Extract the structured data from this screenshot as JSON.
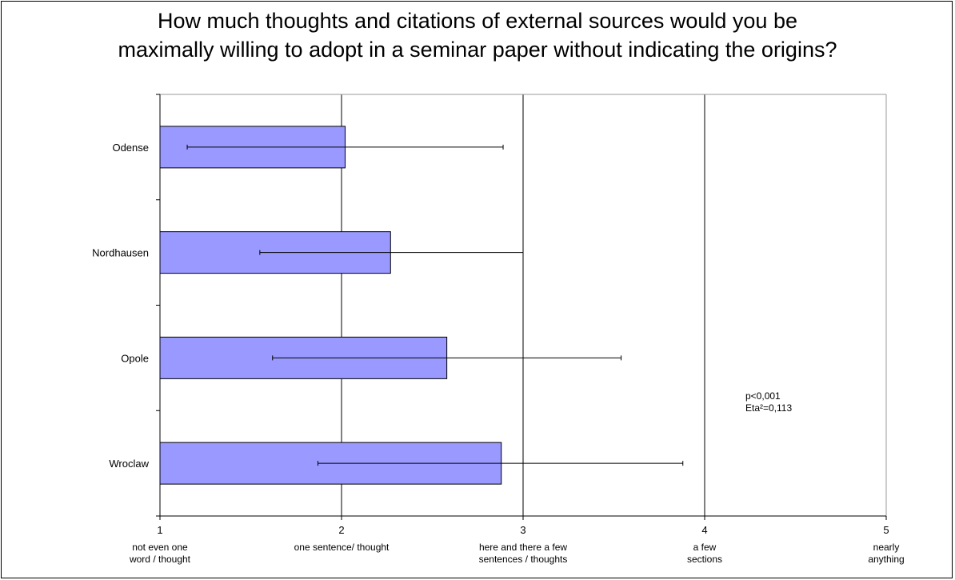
{
  "chart_data": {
    "type": "bar",
    "orientation": "horizontal",
    "title": "How much thoughts and citations of external sources would you be\nmaximally willing to adopt in a seminar paper without indicating the origins?",
    "categories": [
      "Odense",
      "Nordhausen",
      "Opole",
      "Wroclaw"
    ],
    "values": [
      2.02,
      2.27,
      2.58,
      2.88
    ],
    "error_low": [
      1.15,
      1.55,
      1.62,
      1.87
    ],
    "error_high": [
      2.89,
      3.0,
      3.54,
      3.88
    ],
    "xlim": [
      1,
      5
    ],
    "ticks": [
      {
        "value": 1,
        "label": "1",
        "desc": [
          "not even one",
          "word / thought"
        ]
      },
      {
        "value": 2,
        "label": "2",
        "desc": [
          "one sentence/ thought"
        ]
      },
      {
        "value": 3,
        "label": "3",
        "desc": [
          "here and there a few",
          "sentences / thoughts"
        ]
      },
      {
        "value": 4,
        "label": "4",
        "desc": [
          "a few",
          "sections"
        ]
      },
      {
        "value": 5,
        "label": "5",
        "desc": [
          "nearly",
          "anything"
        ]
      }
    ],
    "grid": "vertical",
    "bar_color": "#9999ff",
    "annotation": [
      "p<0,001",
      "Eta²=0,113"
    ]
  }
}
